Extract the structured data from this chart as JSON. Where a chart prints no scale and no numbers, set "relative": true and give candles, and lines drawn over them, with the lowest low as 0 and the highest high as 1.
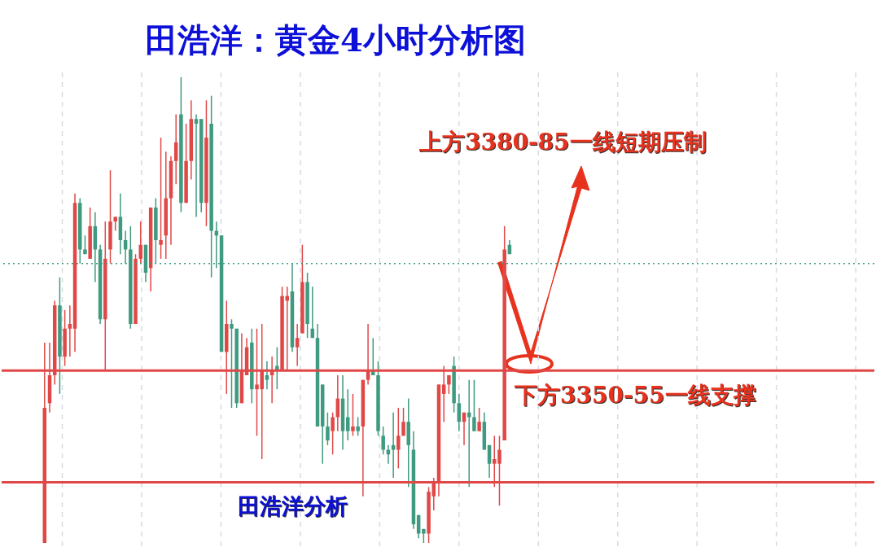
{
  "chart_data": {
    "type": "candlestick",
    "title": "田浩洋：黄金4小时分析图",
    "relative": true,
    "categories": [
      null,
      null,
      null,
      null,
      null,
      null,
      null,
      null,
      null,
      null,
      null,
      null,
      null,
      null,
      null,
      null,
      null,
      null,
      null,
      null,
      null,
      null,
      null,
      null,
      null,
      null,
      null,
      null,
      null,
      null,
      null,
      null,
      null,
      null,
      null,
      null,
      null,
      null,
      null,
      null,
      null,
      null,
      null,
      null,
      null,
      null,
      null,
      null,
      null,
      null,
      null,
      null,
      null,
      null,
      null,
      null,
      null,
      null,
      null,
      null,
      null,
      null,
      null,
      null,
      null,
      null,
      null,
      null,
      null,
      null,
      null,
      null,
      null,
      null,
      null,
      null,
      null,
      null,
      null,
      null,
      null,
      null,
      null,
      null,
      null,
      null,
      null,
      null,
      null,
      null,
      null,
      null,
      null
    ],
    "ohlc": [
      [
        0,
        0.43,
        0,
        0.29
      ],
      [
        0.3,
        0.43,
        0.28,
        0.36
      ],
      [
        0.36,
        0.52,
        0.34,
        0.51
      ],
      [
        0.51,
        0.57,
        0.32,
        0.4
      ],
      [
        0.4,
        0.5,
        0.38,
        0.46
      ],
      [
        0.46,
        0.51,
        0.4,
        0.47
      ],
      [
        0.46,
        0.75,
        0.41,
        0.73
      ],
      [
        0.73,
        0.74,
        0.6,
        0.63
      ],
      [
        0.63,
        0.66,
        0.62,
        0.62
      ],
      [
        0.61,
        0.72,
        0.61,
        0.68
      ],
      [
        0.68,
        0.71,
        0.56,
        0.63
      ],
      [
        0.63,
        0.64,
        0.47,
        0.48
      ],
      [
        0.48,
        0.69,
        0.37,
        0.61
      ],
      [
        0.63,
        0.8,
        0.6,
        0.69
      ],
      [
        0.69,
        0.7,
        0.67,
        0.7
      ],
      [
        0.7,
        0.75,
        0.62,
        0.65
      ],
      [
        0.65,
        0.67,
        0.6,
        0.63
      ],
      [
        0.63,
        0.68,
        0.46,
        0.47
      ],
      [
        0.47,
        0.62,
        0.47,
        0.61
      ],
      [
        0.61,
        0.69,
        0.6,
        0.64
      ],
      [
        0.64,
        0.64,
        0.56,
        0.58
      ],
      [
        0.59,
        0.72,
        0.54,
        0.72
      ],
      [
        0.72,
        0.74,
        0.6,
        0.65
      ],
      [
        0.64,
        0.87,
        0.61,
        0.65
      ],
      [
        0.66,
        0.84,
        0.61,
        0.74
      ],
      [
        0.74,
        0.83,
        0.64,
        0.82
      ],
      [
        0.82,
        0.92,
        0.77,
        0.86
      ],
      [
        0.92,
        1,
        0.71,
        0.73
      ],
      [
        0.73,
        0.9,
        0.73,
        0.82
      ],
      [
        0.82,
        0.95,
        0.78,
        0.91
      ],
      [
        0.91,
        0.92,
        0.7,
        0.9
      ],
      [
        0.91,
        0.91,
        0.71,
        0.73
      ],
      [
        0.73,
        0.95,
        0.68,
        0.87
      ],
      [
        0.9,
        0.96,
        0.57,
        0.67
      ],
      [
        0.67,
        0.69,
        0.59,
        0.66
      ],
      [
        0.66,
        0.66,
        0.41,
        0.41
      ],
      [
        0.41,
        0.52,
        0.32,
        0.47
      ],
      [
        0.47,
        0.48,
        0.29,
        0.46
      ],
      [
        0.46,
        0.46,
        0.29,
        0.3
      ],
      [
        0.3,
        0.45,
        0.3,
        0.37
      ],
      [
        0.36,
        0.44,
        0.36,
        0.42
      ],
      [
        0.43,
        0.46,
        0.3,
        0.33
      ],
      [
        0.33,
        0.46,
        0.23,
        0.34
      ],
      [
        0.33,
        0.47,
        0.18,
        0.37
      ],
      [
        0.36,
        0.39,
        0.33,
        0.35
      ],
      [
        0.36,
        0.4,
        0.3,
        0.37
      ],
      [
        0.38,
        0.42,
        0.33,
        0.37
      ],
      [
        0.37,
        0.55,
        0.37,
        0.53
      ],
      [
        0.52,
        0.55,
        0.37,
        0.53
      ],
      [
        0.54,
        0.6,
        0.41,
        0.42
      ],
      [
        0.42,
        0.47,
        0.38,
        0.44
      ],
      [
        0.45,
        0.64,
        0.45,
        0.56
      ],
      [
        0.56,
        0.58,
        0.44,
        0.47
      ],
      [
        0.46,
        0.55,
        0.44,
        0.44
      ],
      [
        0.44,
        0.47,
        0.25,
        0.25
      ],
      [
        0.34,
        0.34,
        0.17,
        0.25
      ],
      [
        0.25,
        0.28,
        0.21,
        0.22
      ],
      [
        0.24,
        0.28,
        0.19,
        0.27
      ],
      [
        0.27,
        0.36,
        0.24,
        0.31
      ],
      [
        0.31,
        0.36,
        0.2,
        0.24
      ],
      [
        0.27,
        0.33,
        0.22,
        0.24
      ],
      [
        0.24,
        0.32,
        0.23,
        0.25
      ],
      [
        0.25,
        0.27,
        0.23,
        0.24
      ],
      [
        0.25,
        0.35,
        0.1,
        0.35
      ],
      [
        0.35,
        0.47,
        0.34,
        0.37
      ],
      [
        0.37,
        0.44,
        0.36,
        0.36
      ],
      [
        0.36,
        0.39,
        0.23,
        0.24
      ],
      [
        0.23,
        0.25,
        0.19,
        0.2
      ],
      [
        0.2,
        0.21,
        0.17,
        0.19
      ],
      [
        0.21,
        0.28,
        0.14,
        0.2
      ],
      [
        0.2,
        0.29,
        0.16,
        0.23
      ],
      [
        0.23,
        0.29,
        0.23,
        0.26
      ],
      [
        0.26,
        0.31,
        0.12,
        0.21
      ],
      [
        0.2,
        0.24,
        0.03,
        0.04
      ],
      [
        0.06,
        0.06,
        0.01,
        0.02
      ],
      [
        0.03,
        0.03,
        0,
        0.02
      ],
      [
        0.02,
        0.12,
        0,
        0.11
      ],
      [
        0.1,
        0.14,
        0.07,
        0.13
      ],
      [
        0.13,
        0.34,
        0.1,
        0.34
      ],
      [
        0.32,
        0.38,
        0.26,
        0.34
      ],
      [
        0.34,
        0.36,
        0.32,
        0.36
      ],
      [
        0.38,
        0.4,
        0.28,
        0.3
      ],
      [
        0.3,
        0.32,
        0.24,
        0.26
      ],
      [
        0.26,
        0.28,
        0.21,
        0.28
      ],
      [
        0.28,
        0.35,
        0.12,
        0.27
      ],
      [
        0.27,
        0.35,
        0.24,
        0.24
      ],
      [
        0.24,
        0.29,
        0.24,
        0.26
      ],
      [
        0.26,
        0.28,
        0.2,
        0.2
      ],
      [
        0.21,
        0.21,
        0.14,
        0.17
      ],
      [
        0.17,
        0.23,
        0.12,
        0.18
      ],
      [
        0.17,
        0.23,
        0.08,
        0.2
      ],
      [
        0.22,
        0.68,
        0.22,
        0.63
      ],
      [
        0.64,
        0.65,
        0.62,
        0.62
      ]
    ],
    "colors": [
      "#e04848",
      "#e04848",
      "#e04848",
      "#3f9a80",
      "#e04848",
      "#e04848",
      "#e04848",
      "#3f9a80",
      "#3f9a80",
      "#e04848",
      "#3f9a80",
      "#3f9a80",
      "#e04848",
      "#e04848",
      "#e04848",
      "#3f9a80",
      "#3f9a80",
      "#3f9a80",
      "#e04848",
      "#e04848",
      "#3f9a80",
      "#e04848",
      "#3f9a80",
      "#e04848",
      "#e04848",
      "#e04848",
      "#e04848",
      "#3f9a80",
      "#e04848",
      "#e04848",
      "#3f9a80",
      "#3f9a80",
      "#e04848",
      "#3f9a80",
      "#3f9a80",
      "#3f9a80",
      "#e04848",
      "#3f9a80",
      "#3f9a80",
      "#e04848",
      "#e04848",
      "#3f9a80",
      "#e04848",
      "#e04848",
      "#3f9a80",
      "#e04848",
      "#3f9a80",
      "#e04848",
      "#e04848",
      "#3f9a80",
      "#e04848",
      "#e04848",
      "#3f9a80",
      "#3f9a80",
      "#3f9a80",
      "#3f9a80",
      "#3f9a80",
      "#e04848",
      "#e04848",
      "#3f9a80",
      "#3f9a80",
      "#e04848",
      "#3f9a80",
      "#e04848",
      "#e04848",
      "#3f9a80",
      "#3f9a80",
      "#3f9a80",
      "#3f9a80",
      "#3f9a80",
      "#e04848",
      "#e04848",
      "#3f9a80",
      "#3f9a80",
      "#3f9a80",
      "#3f9a80",
      "#e04848",
      "#e04848",
      "#e04848",
      "#e04848",
      "#e04848",
      "#3f9a80",
      "#3f9a80",
      "#e04848",
      "#3f9a80",
      "#3f9a80",
      "#e04848",
      "#3f9a80",
      "#3f9a80",
      "#e04848",
      "#e04848",
      "#e04848",
      "#3f9a80"
    ],
    "ref_lines": [
      {
        "axis": "y",
        "value": 0.37,
        "color": "#e04848",
        "line_style": "solid"
      },
      {
        "axis": "y",
        "value": 0.13,
        "color": "#e04848",
        "line_style": "solid"
      },
      {
        "axis": "y",
        "value": 0.6,
        "color": "#3f9a80",
        "line_style": "dotted"
      }
    ],
    "annotations": [
      "上方3380-85一线短期压制",
      "下方3350-55一线支撑",
      "田浩洋分析"
    ],
    "grid": "x"
  }
}
